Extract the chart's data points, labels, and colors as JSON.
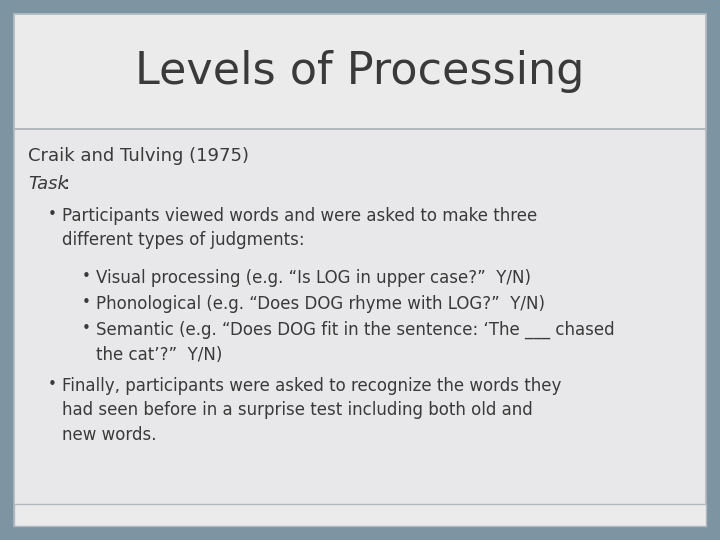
{
  "title": "Levels of Processing",
  "title_fontsize": 32,
  "title_color": "#3a3a3a",
  "title_bg_color": "#ebebeb",
  "body_bg_color": "#e8e8ea",
  "outer_bg_color": "#7d94a3",
  "border_color": "#b0b8be",
  "subtitle": "Craik and Tulving (1975)",
  "subtitle_fontsize": 13,
  "task_label": "Task",
  "task_colon": ":",
  "task_fontsize": 13,
  "body_fontsize": 12,
  "bullet1": "Participants viewed words and were asked to make three\ndifferent types of judgments:",
  "sub_bullet1": "Visual processing (e.g. “Is LOG in upper case?”  Y/N)",
  "sub_bullet2": "Phonological (e.g. “Does DOG rhyme with LOG?”  Y/N)",
  "sub_bullet3": "Semantic (e.g. “Does DOG fit in the sentence: ‘The ___ chased\nthe cat’?”  Y/N)",
  "bullet2": "Finally, participants were asked to recognize the words they\nhad seen before in a surprise test including both old and\nnew words.",
  "font_family": "DejaVu Sans"
}
